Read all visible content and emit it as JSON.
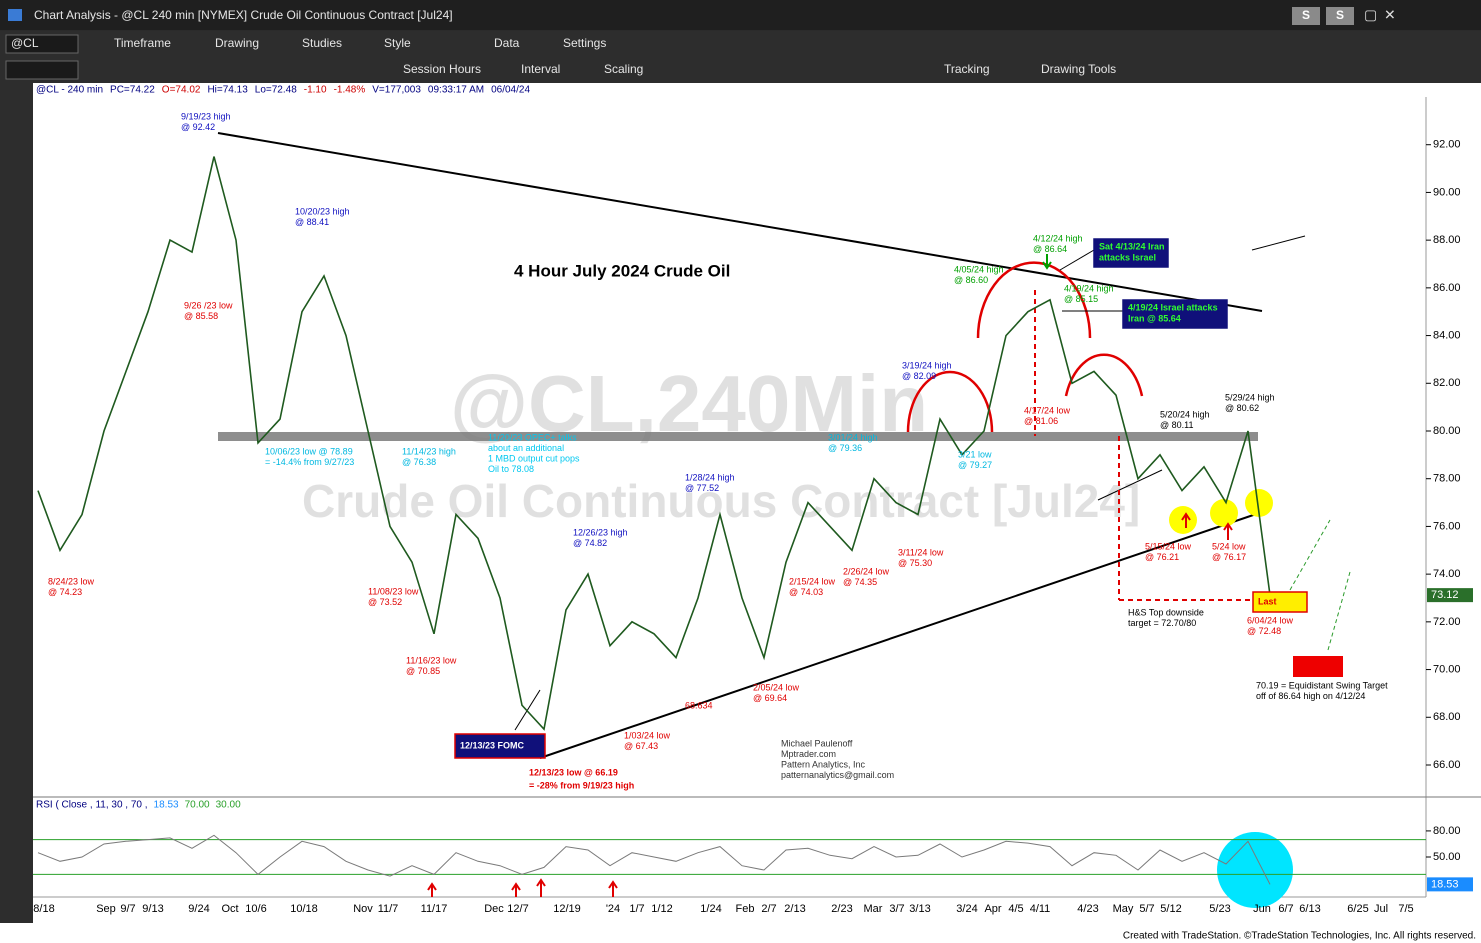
{
  "window": {
    "title": "Chart Analysis - @CL 240 min [NYMEX] Crude Oil Continuous Contract [Jul24]",
    "buttons": [
      "S",
      "S"
    ],
    "symbol": "@CL",
    "toolbar_row1": [
      "Timeframe",
      "Drawing",
      "Studies",
      "Style",
      "Data",
      "Settings"
    ],
    "toolbar_row2": [
      "Session Hours",
      "Interval",
      "Scaling",
      "Tracking",
      "Drawing Tools"
    ],
    "footer": "Created with TradeStation. ©TradeStation Technologies, Inc. All rights reserved."
  },
  "info_bar": [
    {
      "text": "@CL - 240 min",
      "color": "#000080"
    },
    {
      "text": "PC=74.22",
      "color": "#000080"
    },
    {
      "text": "O=74.02",
      "color": "#cc0000"
    },
    {
      "text": "Hi=74.13",
      "color": "#000080"
    },
    {
      "text": "Lo=72.48",
      "color": "#000080"
    },
    {
      "text": "-1.10",
      "color": "#cc0000"
    },
    {
      "text": "-1.48%",
      "color": "#cc0000"
    },
    {
      "text": "V=177,003",
      "color": "#000080"
    },
    {
      "text": "09:33:17 AM",
      "color": "#000080"
    },
    {
      "text": "06/04/24",
      "color": "#000080"
    }
  ],
  "watermark": [
    "@CL,240Min",
    "Crude Oil Continuous Contract [Jul24]"
  ],
  "chart_title": "4 Hour July 2024 Crude Oil",
  "x_axis": [
    "8/18",
    "Sep",
    "9/7",
    "9/13",
    "9/24",
    "Oct",
    "10/6",
    "10/18",
    "Nov",
    "11/7",
    "11/17",
    "Dec",
    "12/7",
    "12/19",
    "'24",
    "1/7",
    "1/12",
    "1/24",
    "Feb",
    "2/7",
    "2/13",
    "2/23",
    "Mar",
    "3/7",
    "3/13",
    "3/24",
    "Apr",
    "4/5",
    "4/11",
    "4/23",
    "May",
    "5/7",
    "5/12",
    "5/23",
    "Jun",
    "6/7",
    "6/13",
    "6/25",
    "Jul",
    "7/5"
  ],
  "chart_data": [
    {
      "type": "line",
      "color": "#1f5a1f",
      "categories": [
        null,
        null,
        null,
        null,
        null,
        null,
        null,
        null,
        null,
        null,
        null,
        null,
        null,
        null,
        null,
        null,
        null,
        null,
        null,
        null,
        null,
        null,
        null,
        null,
        null,
        null,
        null,
        null,
        null,
        null,
        null,
        null,
        null,
        null,
        null,
        null,
        null,
        null,
        null,
        null,
        null,
        null,
        null,
        null,
        null,
        null,
        null,
        null,
        null,
        null,
        null,
        null,
        null,
        null,
        null,
        null,
        null
      ],
      "values": [
        77.5,
        75,
        76.5,
        80,
        82.5,
        85,
        88,
        87.5,
        91.5,
        88,
        79.5,
        80.5,
        85,
        86.5,
        84,
        80,
        76,
        74.5,
        71.5,
        76.5,
        75.5,
        73,
        68.5,
        67.5,
        72.5,
        74,
        71,
        72,
        71.5,
        70.5,
        73,
        76.5,
        73,
        70.5,
        74.5,
        77,
        76,
        75,
        78,
        77,
        76.5,
        80.5,
        79,
        80,
        84,
        85,
        85.5,
        82,
        82.5,
        81.5,
        78,
        79,
        77.5,
        78.5,
        77,
        80,
        73.12
      ],
      "ylim": [
        64.7,
        94.0
      ],
      "yticks": [
        {
          "value": 66,
          "label": "66.00"
        },
        {
          "value": 68,
          "label": "68.00"
        },
        {
          "value": 70,
          "label": "70.00"
        },
        {
          "value": 72,
          "label": "72.00"
        },
        {
          "value": 74,
          "label": "74.00"
        },
        {
          "value": 76,
          "label": "76.00"
        },
        {
          "value": 78,
          "label": "78.00"
        },
        {
          "value": 80,
          "label": "80.00"
        },
        {
          "value": 82,
          "label": "82.00"
        },
        {
          "value": 84,
          "label": "84.00"
        },
        {
          "value": 86,
          "label": "86.00"
        },
        {
          "value": 88,
          "label": "88.00"
        },
        {
          "value": 90,
          "label": "90.00"
        },
        {
          "value": 92,
          "label": "92.00"
        }
      ]
    },
    {
      "type": "line",
      "title": "RSI ( Close , 11, 30 , 70 ,",
      "color": "#7a7a7a",
      "categories": [
        null,
        null,
        null,
        null,
        null,
        null,
        null,
        null,
        null,
        null,
        null,
        null,
        null,
        null,
        null,
        null,
        null,
        null,
        null,
        null,
        null,
        null,
        null,
        null,
        null,
        null,
        null,
        null,
        null,
        null,
        null,
        null,
        null,
        null,
        null,
        null,
        null,
        null,
        null,
        null,
        null,
        null,
        null,
        null,
        null,
        null,
        null,
        null,
        null,
        null,
        null,
        null,
        null,
        null,
        null,
        null,
        null
      ],
      "values": [
        55,
        45,
        50,
        65,
        68,
        70,
        72,
        60,
        75,
        55,
        30,
        50,
        68,
        62,
        45,
        35,
        28,
        40,
        30,
        55,
        45,
        40,
        30,
        38,
        62,
        58,
        40,
        55,
        50,
        45,
        55,
        62,
        40,
        35,
        58,
        60,
        52,
        48,
        62,
        50,
        52,
        65,
        50,
        58,
        68,
        66,
        62,
        40,
        55,
        52,
        35,
        58,
        45,
        55,
        42,
        68,
        18.53
      ],
      "levels": [
        {
          "value": 70,
          "label": "70.00"
        },
        {
          "value": 30,
          "label": "30.00"
        }
      ],
      "ylim": [
        4,
        119
      ],
      "yticks": [
        {
          "value": 50,
          "label": "50.00"
        },
        {
          "value": 80,
          "label": "80.00"
        }
      ]
    }
  ],
  "annotations": [
    {
      "lines": [
        "9/19/23 high",
        "@ 92.42"
      ],
      "color": "#1010c0"
    },
    {
      "lines": [
        "9/26 /23 low",
        "@ 85.58"
      ],
      "color": "#e00000"
    },
    {
      "lines": [
        "10/20/23 high",
        "@ 88.41"
      ],
      "color": "#1010c0"
    },
    {
      "lines": [
        "10/06/23 low @ 78.89",
        "= -14.4% from 9/27/23"
      ],
      "color": "#00b8e0"
    },
    {
      "lines": [
        "11/14/23 high",
        "@ 76.38"
      ],
      "color": "#00b8e0"
    },
    {
      "lines": [
        "11/20/23 OPEC+ talks",
        "about an additional",
        "1 MBD output cut pops",
        "Oil to 78.08"
      ],
      "color": "#00c8f0"
    },
    {
      "lines": [
        "8/24/23 low",
        "@ 74.23"
      ],
      "color": "#e00000"
    },
    {
      "lines": [
        "11/08/23 low",
        "@ 73.52"
      ],
      "color": "#e00000"
    },
    {
      "lines": [
        "11/16/23 low",
        "@ 70.85"
      ],
      "color": "#e00000"
    },
    {
      "lines": [
        "12/26/23 high",
        "@ 74.82"
      ],
      "color": "#1010c0"
    },
    {
      "lines": [
        "1/28/24 high",
        "@ 77.52"
      ],
      "color": "#1010c0"
    },
    {
      "lines": [
        "1/03/24 low",
        "@ 67.43"
      ],
      "color": "#e00000"
    },
    {
      "lines": [
        "68.634"
      ],
      "color": "#e00000"
    },
    {
      "lines": [
        "2/05/24 low",
        "@ 69.64"
      ],
      "color": "#e00000"
    },
    {
      "lines": [
        "2/15/24 low",
        "@ 74.03"
      ],
      "color": "#e00000"
    },
    {
      "lines": [
        "2/26/24 low",
        "@ 74.35"
      ],
      "color": "#e00000"
    },
    {
      "lines": [
        "3/11/24 low",
        "@ 75.30"
      ],
      "color": "#e00000"
    },
    {
      "lines": [
        "3/01/24 high",
        "@ 79.36"
      ],
      "color": "#00b8e0"
    },
    {
      "lines": [
        "3/19/24 high",
        "@ 82.09"
      ],
      "color": "#1010c0"
    },
    {
      "lines": [
        "3/21 low",
        "@ 79.27"
      ],
      "color": "#00b8e0"
    },
    {
      "lines": [
        "4/05/24 high",
        "@ 86.60"
      ],
      "color": "#00a000"
    },
    {
      "lines": [
        "4/12/24 high",
        "@ 86.64"
      ],
      "color": "#00a000"
    },
    {
      "lines": [
        "4/19/24 high",
        "@ 85.15"
      ],
      "color": "#00a000"
    },
    {
      "lines": [
        "4/17/24 low",
        "@ 81.06"
      ],
      "color": "#e00000"
    },
    {
      "lines": [
        "5/20/24 high",
        "@ 80.11"
      ],
      "color": "#000000"
    },
    {
      "lines": [
        "5/29/24 high",
        "@ 80.62"
      ],
      "color": "#000000"
    },
    {
      "lines": [
        "5/15/24 low",
        "@ 76.21"
      ],
      "color": "#e00000"
    },
    {
      "lines": [
        "5/24 low",
        "@ 76.17"
      ],
      "color": "#e00000"
    },
    {
      "lines": [
        "6/04/24 low",
        "@ 72.48"
      ],
      "color": "#e00000"
    },
    {
      "lines": [
        "H&S Top downside",
        "target = 72.70/80"
      ],
      "color": "#000000"
    },
    {
      "lines": [
        "70.19 = Equidistant Swing Target",
        "off of 86.64 high on 4/12/24"
      ],
      "color": "#000000"
    },
    {
      "lines": [
        "Michael Paulenoff",
        "Mptrader.com",
        "Pattern Analytics, Inc",
        "patternanalytics@gmail.com"
      ],
      "color": "#333333"
    },
    {
      "lines": [
        "12/13/23 low @ 66.19",
        "= -28% from 9/19/23 high"
      ],
      "color": "#e00000"
    }
  ],
  "boxes": [
    {
      "lines": [
        "12/13/23 FOMC"
      ],
      "color": "#ffffff",
      "fill": "#10107a",
      "border": "#e00000"
    },
    {
      "lines": [
        "Sat 4/13/24 Iran",
        "attacks Israel"
      ],
      "color": "#30ff30",
      "fill": "#10107a",
      "border": "#10107a"
    },
    {
      "lines": [
        "4/19/24 Israel attacks",
        "Iran @ 85.64"
      ],
      "color": "#30ff30",
      "fill": "#10107a",
      "border": "#10107a"
    },
    {
      "lines": [
        "Last"
      ],
      "color": "#e00000",
      "fill": "#ffee00",
      "border": "#e00000"
    }
  ]
}
